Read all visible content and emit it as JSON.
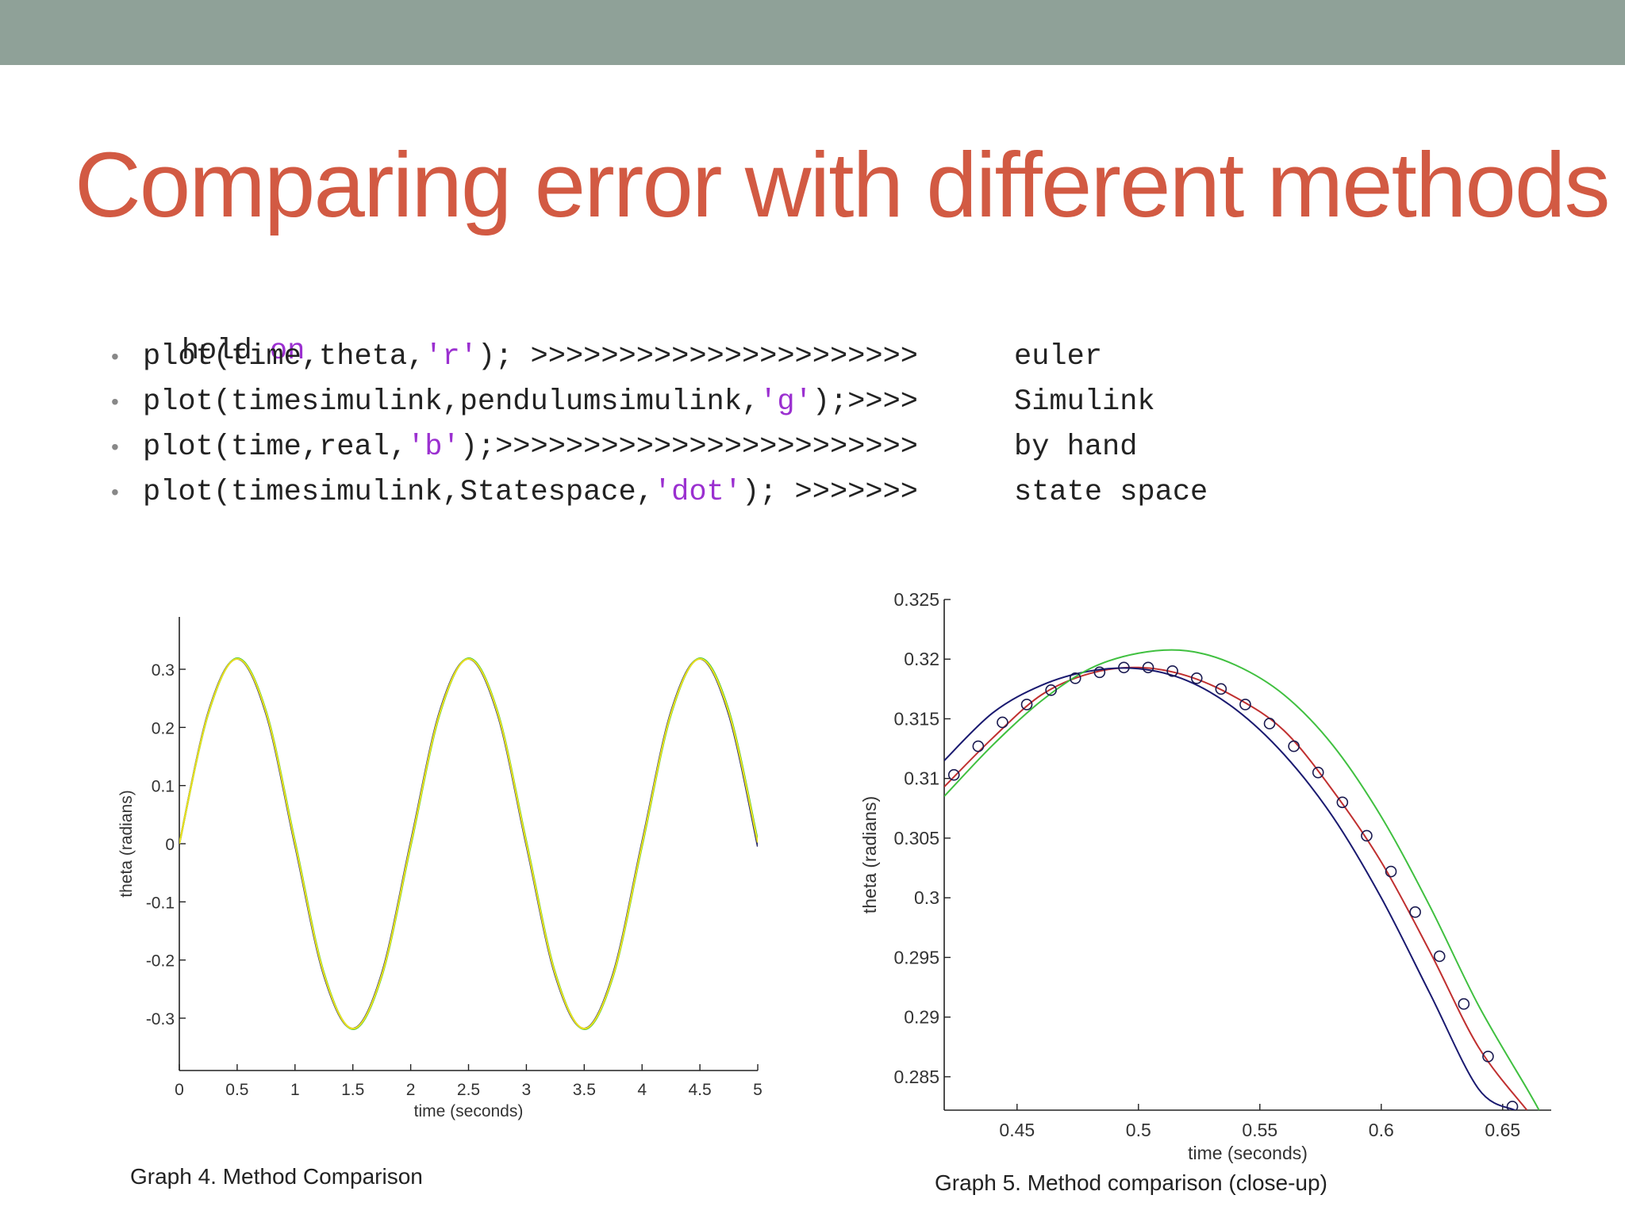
{
  "slide": {
    "title": "Comparing error with different methods"
  },
  "code": {
    "hold_word": "hold",
    "hold_on_word": "on",
    "lines": [
      {
        "bullet": "•",
        "pre": "plot(time,theta,",
        "str": "'r'",
        "post": "); >>>>>>>>>>>>>>>>>>>>>>",
        "label": "euler"
      },
      {
        "bullet": "•",
        "pre": "plot(timesimulink,pendulumsimulink,",
        "str": "'g'",
        "post": ");>>>>",
        "label": "Simulink"
      },
      {
        "bullet": "•",
        "pre": "plot(time,real,",
        "str": "'b'",
        "post": ");>>>>>>>>>>>>>>>>>>>>>>>>",
        "label": "by hand"
      },
      {
        "bullet": "•",
        "pre": "plot(timesimulink,Statespace,",
        "str": "'dot'",
        "post": "); >>>>>>>",
        "label": "state space"
      }
    ]
  },
  "chart_data": [
    {
      "type": "line",
      "caption": "Graph 4. Method Comparison",
      "xlabel": "time (seconds)",
      "ylabel": "theta (radians)",
      "xlim": [
        0,
        5
      ],
      "ylim": [
        -0.39,
        0.39
      ],
      "xticks": [
        0,
        0.5,
        1,
        1.5,
        2,
        2.5,
        3,
        3.5,
        4,
        4.5,
        5
      ],
      "xtick_labels": [
        "0",
        "0.5",
        "1",
        "1.5",
        "2",
        "2.5",
        "3",
        "3.5",
        "4",
        "4.5",
        "5"
      ],
      "yticks": [
        0.3,
        0.2,
        0.1,
        0,
        -0.1,
        -0.2,
        -0.3
      ],
      "ytick_labels": [
        "0.3",
        "0.2",
        "0.1",
        "0",
        "-0.1",
        "-0.2",
        "-0.3"
      ],
      "grid": false,
      "series": [
        {
          "color": "#d42020",
          "x": [
            0,
            0.25,
            0.5,
            0.75,
            1,
            1.25,
            1.5,
            1.75,
            2,
            2.25,
            2.5,
            2.75,
            3,
            3.25,
            3.5,
            3.75,
            4,
            4.25,
            4.5,
            4.75,
            5
          ],
          "values": [
            0,
            0.225,
            0.318,
            0.225,
            0,
            -0.225,
            -0.318,
            -0.225,
            0,
            0.225,
            0.318,
            0.225,
            0,
            -0.225,
            -0.318,
            -0.225,
            0,
            0.225,
            0.318,
            0.225,
            0
          ]
        },
        {
          "color": "#2a2a6a",
          "x": [
            0,
            0.25,
            0.5,
            0.75,
            1,
            1.25,
            1.5,
            1.75,
            2,
            2.25,
            2.5,
            2.75,
            3,
            3.25,
            3.5,
            3.75,
            4,
            4.25,
            4.5,
            4.75,
            5
          ],
          "values": [
            0,
            0.226,
            0.318,
            0.223,
            -0.003,
            -0.227,
            -0.318,
            -0.223,
            0.003,
            0.227,
            0.318,
            0.223,
            -0.003,
            -0.227,
            -0.318,
            -0.223,
            0.003,
            0.227,
            0.318,
            0.222,
            -0.005
          ]
        },
        {
          "color": "#3ec63e",
          "x": [
            0,
            0.25,
            0.5,
            0.75,
            1,
            1.25,
            1.5,
            1.75,
            2,
            2.25,
            2.5,
            2.75,
            3,
            3.25,
            3.5,
            3.75,
            4,
            4.25,
            4.5,
            4.75,
            5
          ],
          "values": [
            0,
            0.223,
            0.319,
            0.228,
            0.004,
            -0.222,
            -0.319,
            -0.228,
            -0.004,
            0.222,
            0.319,
            0.228,
            0.004,
            -0.222,
            -0.319,
            -0.228,
            -0.004,
            0.222,
            0.319,
            0.229,
            0.006
          ]
        },
        {
          "color": "#e8e020",
          "x": [
            0,
            0.25,
            0.5,
            0.75,
            1,
            1.25,
            1.5,
            1.75,
            2,
            2.25,
            2.5,
            2.75,
            3,
            3.25,
            3.5,
            3.75,
            4,
            4.25,
            4.5,
            4.75,
            5
          ],
          "values": [
            0,
            0.224,
            0.318,
            0.226,
            0.001,
            -0.224,
            -0.318,
            -0.226,
            -0.001,
            0.224,
            0.318,
            0.226,
            0.001,
            -0.224,
            -0.318,
            -0.226,
            -0.001,
            0.224,
            0.318,
            0.226,
            0.002
          ]
        }
      ]
    },
    {
      "type": "line",
      "caption": "Graph 5. Method comparison (close-up)",
      "xlabel": "time (seconds)",
      "ylabel": "theta (radians)",
      "xlim": [
        0.42,
        0.67
      ],
      "ylim": [
        0.2822,
        0.325
      ],
      "xticks": [
        0.45,
        0.5,
        0.55,
        0.6,
        0.65
      ],
      "xtick_labels": [
        "0.45",
        "0.5",
        "0.55",
        "0.6",
        "0.65"
      ],
      "yticks": [
        0.325,
        0.32,
        0.315,
        0.31,
        0.305,
        0.3,
        0.295,
        0.29,
        0.285
      ],
      "ytick_labels": [
        "0.325",
        "0.32",
        "0.315",
        "0.31",
        "0.305",
        "0.3",
        "0.295",
        "0.29",
        "0.285"
      ],
      "grid": false,
      "series": [
        {
          "color": "#c03030",
          "marker": "none",
          "x": [
            0.42,
            0.44,
            0.46,
            0.48,
            0.5,
            0.52,
            0.54,
            0.56,
            0.58,
            0.6,
            0.62,
            0.64,
            0.66
          ],
          "values": [
            0.3093,
            0.3134,
            0.317,
            0.3188,
            0.3193,
            0.3186,
            0.3168,
            0.314,
            0.309,
            0.303,
            0.2955,
            0.2875,
            0.2822
          ]
        },
        {
          "color": "#1a1a70",
          "marker": "none",
          "x": [
            0.42,
            0.44,
            0.46,
            0.48,
            0.5,
            0.52,
            0.54,
            0.56,
            0.58,
            0.6,
            0.62,
            0.64,
            0.655
          ],
          "values": [
            0.3115,
            0.3155,
            0.3178,
            0.319,
            0.3192,
            0.3182,
            0.3158,
            0.312,
            0.3068,
            0.3,
            0.292,
            0.284,
            0.2822
          ]
        },
        {
          "color": "#40c040",
          "marker": "none",
          "x": [
            0.42,
            0.44,
            0.46,
            0.48,
            0.5,
            0.52,
            0.54,
            0.56,
            0.58,
            0.6,
            0.62,
            0.64,
            0.66,
            0.665
          ],
          "values": [
            0.3085,
            0.3128,
            0.3165,
            0.3192,
            0.3205,
            0.3207,
            0.3195,
            0.317,
            0.3128,
            0.3068,
            0.2993,
            0.291,
            0.284,
            0.2822
          ]
        },
        {
          "color": "#1a1a50",
          "marker": "circle",
          "x": [
            0.424,
            0.434,
            0.444,
            0.454,
            0.464,
            0.474,
            0.484,
            0.494,
            0.504,
            0.514,
            0.524,
            0.534,
            0.544,
            0.554,
            0.564,
            0.574,
            0.584,
            0.594,
            0.604,
            0.614,
            0.624,
            0.634,
            0.644,
            0.654
          ],
          "values": [
            0.3103,
            0.3127,
            0.3147,
            0.3162,
            0.3174,
            0.3184,
            0.3189,
            0.3193,
            0.3193,
            0.319,
            0.3184,
            0.3175,
            0.3162,
            0.3146,
            0.3127,
            0.3105,
            0.308,
            0.3052,
            0.3022,
            0.2988,
            0.2951,
            0.2911,
            0.2867,
            0.2825
          ]
        }
      ]
    }
  ]
}
